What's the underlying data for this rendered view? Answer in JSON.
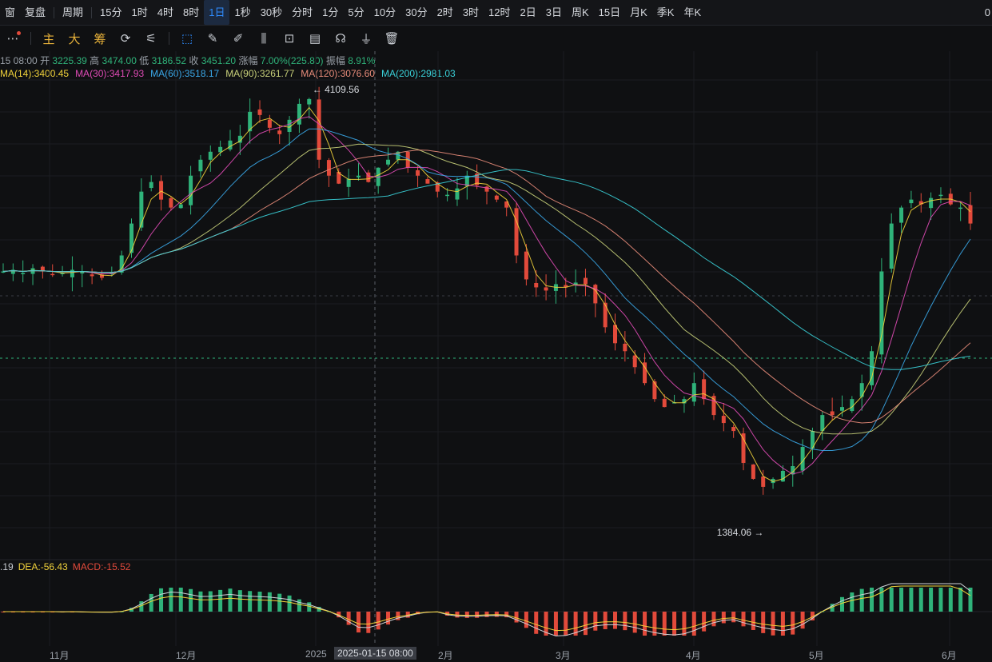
{
  "topbar": {
    "items": [
      "窗",
      "复盘",
      "周期",
      "15分",
      "1时",
      "4时",
      "8时",
      "1日",
      "1秒",
      "30秒",
      "分时",
      "1分",
      "5分",
      "10分",
      "30分",
      "2时",
      "3时",
      "12时",
      "2日",
      "3日",
      "周K",
      "15日",
      "月K",
      "季K",
      "年K"
    ],
    "active": "1日",
    "right_text": "0"
  },
  "toolbar": {
    "indicators": [
      "主",
      "大",
      "筹"
    ]
  },
  "ohlc": {
    "time": "15 08:00",
    "open_label": "开",
    "open": "3225.39",
    "high_label": "高",
    "high": "3474.00",
    "low_label": "低",
    "low": "3186.52",
    "close_label": "收",
    "close": "3451.20",
    "chg_label": "涨幅",
    "chg": "7.00%(225.80)",
    "amp_label": "振幅",
    "amp": "8.91%"
  },
  "ma_legend": [
    {
      "text": "MA(14):3400.45",
      "color": "#f2d33b"
    },
    {
      "text": "MA(30):3417.93",
      "color": "#e04bb6"
    },
    {
      "text": "MA(60):3518.17",
      "color": "#3aa7e8"
    },
    {
      "text": "MA(90):3261.77",
      "color": "#c8d07a"
    },
    {
      "text": "MA(120):3076.60",
      "color": "#e88c7a"
    },
    {
      "text": "MA(200):2981.03",
      "color": "#3ad0d8"
    }
  ],
  "macd_legend": [
    {
      "text": ".19",
      "color": "#c8ccd2"
    },
    {
      "text": "DEA:-56.43",
      "color": "#f2d33b"
    },
    {
      "text": "MACD:-15.52",
      "color": "#e24a3b"
    }
  ],
  "annotations": {
    "high": "4109.56",
    "low": "1384.06"
  },
  "xaxis": {
    "labels": [
      "11月",
      "12月",
      "2025",
      "2月",
      "3月",
      "4月",
      "5月",
      "6月"
    ],
    "crosshair": "2025-01-15 08:00"
  },
  "colors": {
    "up": "#2fb37a",
    "down": "#e24a3b",
    "bg": "#0f1012",
    "accent": "#2f8cff"
  },
  "chart_data": {
    "type": "line",
    "series": [
      {
        "name": "MA(14)",
        "values": [
          3400.45
        ]
      },
      {
        "name": "MA(30)",
        "values": [
          3417.93
        ]
      },
      {
        "name": "MA(60)",
        "values": [
          3518.17
        ]
      },
      {
        "name": "MA(90)",
        "values": [
          3261.77
        ]
      },
      {
        "name": "MA(120)",
        "values": [
          3076.6
        ]
      },
      {
        "name": "MA(200)",
        "values": [
          2981.03
        ]
      }
    ],
    "candles_shape": [
      3000,
      3010,
      2990,
      3020,
      3000,
      2980,
      2990,
      3010,
      3000,
      2970,
      2960,
      2990,
      3100,
      3300,
      3500,
      3560,
      3450,
      3400,
      3420,
      3600,
      3700,
      3750,
      3780,
      3820,
      3850,
      4000,
      3980,
      3900,
      3860,
      3950,
      4050,
      4080,
      3700,
      3600,
      3550,
      3580,
      3600,
      3560,
      3650,
      3700,
      3750,
      3650,
      3600,
      3550,
      3500,
      3480,
      3520,
      3600,
      3540,
      3500,
      3450,
      3400,
      3100,
      2950,
      2900,
      2880,
      2920,
      2900,
      2930,
      2920,
      2800,
      2650,
      2550,
      2500,
      2400,
      2300,
      2200,
      2150,
      2180,
      2200,
      2300,
      2200,
      2100,
      2050,
      2000,
      1800,
      1700,
      1650,
      1700,
      1750,
      1780,
      1900,
      2000,
      2100,
      2100,
      2150,
      2200,
      2300,
      2500,
      3000,
      3300,
      3400,
      3450,
      3420,
      3460,
      3480,
      3420,
      3400,
      3300
    ],
    "grid": true
  }
}
